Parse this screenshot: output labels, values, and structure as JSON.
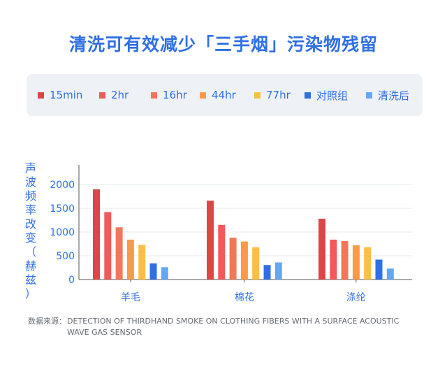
{
  "chart_data": {
    "type": "bar",
    "title": "清洗可有效减少「三手烟」污染物残留",
    "ylabel": "声波频率改变（赫兹）",
    "categories": [
      "羊毛",
      "棉花",
      "涤纶"
    ],
    "ylim": [
      0,
      2000
    ],
    "yticks": [
      0,
      500,
      1000,
      1500,
      2000
    ],
    "grid": true,
    "legend_position": "top",
    "series": [
      {
        "name": "15min",
        "color": "#e04545",
        "values": [
          1900,
          1660,
          1280
        ]
      },
      {
        "name": "2hr",
        "color": "#f05a5a",
        "values": [
          1420,
          1150,
          840
        ]
      },
      {
        "name": "16hr",
        "color": "#f2775a",
        "values": [
          1100,
          880,
          810
        ]
      },
      {
        "name": "44hr",
        "color": "#f79a4a",
        "values": [
          840,
          800,
          720
        ]
      },
      {
        "name": "77hr",
        "color": "#fbbf45",
        "values": [
          730,
          680,
          680
        ]
      },
      {
        "name": "对照组",
        "color": "#2f6fe4",
        "values": [
          340,
          305,
          420
        ]
      },
      {
        "name": "清洗后",
        "color": "#62a8f2",
        "values": [
          260,
          360,
          230
        ]
      }
    ]
  },
  "source": {
    "label": "数据来源：",
    "text": "DETECTION OF THIRDHAND SMOKE ON CLOTHING FIBERS WITH A SURFACE ACOUSTIC WAVE GAS SENSOR"
  }
}
